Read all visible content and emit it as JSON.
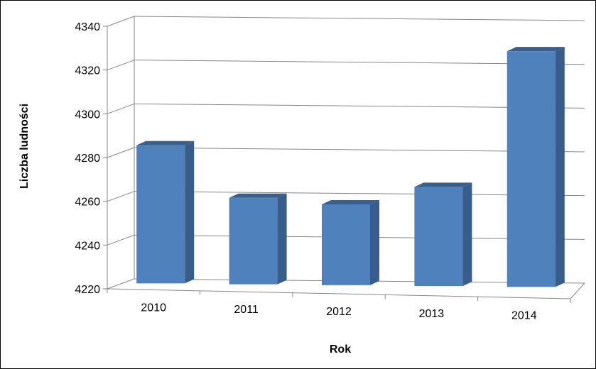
{
  "chart_data": {
    "type": "bar",
    "categories": [
      "2010",
      "2011",
      "2012",
      "2013",
      "2014"
    ],
    "values": [
      4283,
      4259,
      4256,
      4264,
      4326
    ],
    "xlabel": "Rok",
    "ylabel": "Liczba ludności",
    "ylim": [
      4220,
      4340
    ],
    "yticks": [
      "4220",
      "4240",
      "4260",
      "4280",
      "4300",
      "4320",
      "4340"
    ],
    "grid": true,
    "legend": "none",
    "bar_color": "#4f81bd",
    "bar_side_color": "#385d8a",
    "bar_top_color": "#3a5f8c"
  }
}
